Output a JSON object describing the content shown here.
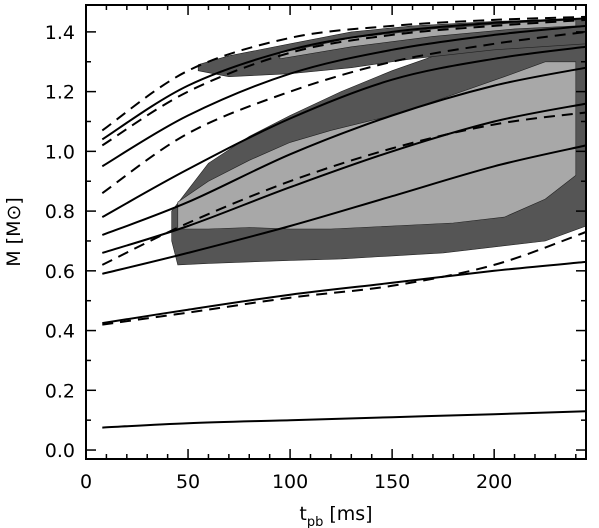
{
  "chart_data": {
    "type": "line",
    "xlabel": "t",
    "xlabel_sub": "pb",
    "xlabel_unit": "[ms]",
    "ylabel": "M [M⊙]",
    "xlim": [
      0,
      245
    ],
    "ylim": [
      -0.03,
      1.49
    ],
    "xticks": [
      0,
      50,
      100,
      150,
      200
    ],
    "yticks": [
      0.0,
      0.2,
      0.4,
      0.6,
      0.8,
      1.0,
      1.2,
      1.4
    ],
    "grid": false,
    "legend": "none",
    "colors": {
      "dark_region": "#555555",
      "light_region": "#a8a8a8",
      "line": "#000000"
    },
    "regions": [
      {
        "shade": "dark",
        "upper": [
          [
            42,
            0.8
          ],
          [
            60,
            0.96
          ],
          [
            80,
            1.05
          ],
          [
            100,
            1.12
          ],
          [
            125,
            1.2
          ],
          [
            150,
            1.27
          ],
          [
            175,
            1.33
          ],
          [
            200,
            1.37
          ],
          [
            225,
            1.4
          ],
          [
            245,
            1.42
          ]
        ],
        "lower": [
          [
            245,
            0.75
          ],
          [
            225,
            0.7
          ],
          [
            200,
            0.68
          ],
          [
            175,
            0.66
          ],
          [
            150,
            0.65
          ],
          [
            125,
            0.64
          ],
          [
            100,
            0.635
          ],
          [
            80,
            0.63
          ],
          [
            60,
            0.625
          ],
          [
            45,
            0.62
          ],
          [
            42,
            0.7
          ]
        ]
      },
      {
        "shade": "light",
        "upper": [
          [
            45,
            0.83
          ],
          [
            60,
            0.9
          ],
          [
            80,
            0.97
          ],
          [
            100,
            1.03
          ],
          [
            120,
            1.07
          ],
          [
            150,
            1.12
          ],
          [
            180,
            1.19
          ],
          [
            205,
            1.25
          ],
          [
            225,
            1.3
          ],
          [
            240,
            1.3
          ]
        ],
        "lower": [
          [
            240,
            0.92
          ],
          [
            225,
            0.84
          ],
          [
            205,
            0.78
          ],
          [
            180,
            0.76
          ],
          [
            150,
            0.75
          ],
          [
            120,
            0.74
          ],
          [
            100,
            0.74
          ],
          [
            80,
            0.745
          ],
          [
            60,
            0.74
          ],
          [
            45,
            0.74
          ]
        ]
      },
      {
        "shade": "dark",
        "upper": [
          [
            55,
            1.29
          ],
          [
            70,
            1.32
          ],
          [
            100,
            1.36
          ],
          [
            130,
            1.4
          ],
          [
            160,
            1.42
          ],
          [
            200,
            1.435
          ],
          [
            245,
            1.445
          ]
        ],
        "lower": [
          [
            245,
            1.36
          ],
          [
            200,
            1.34
          ],
          [
            160,
            1.31
          ],
          [
            130,
            1.28
          ],
          [
            100,
            1.26
          ],
          [
            70,
            1.25
          ],
          [
            55,
            1.27
          ]
        ]
      },
      {
        "shade": "light",
        "upper": [
          [
            95,
            1.33
          ],
          [
            130,
            1.38
          ],
          [
            170,
            1.41
          ],
          [
            210,
            1.43
          ],
          [
            240,
            1.44
          ]
        ],
        "lower": [
          [
            240,
            1.42
          ],
          [
            210,
            1.41
          ],
          [
            170,
            1.385
          ],
          [
            130,
            1.35
          ],
          [
            95,
            1.31
          ]
        ]
      }
    ],
    "series": [
      {
        "style": "solid",
        "x": [
          8,
          50,
          100,
          150,
          200,
          245
        ],
        "y": [
          0.075,
          0.09,
          0.1,
          0.11,
          0.12,
          0.13
        ]
      },
      {
        "style": "solid",
        "x": [
          8,
          50,
          100,
          150,
          200,
          245
        ],
        "y": [
          0.425,
          0.47,
          0.52,
          0.56,
          0.6,
          0.63
        ]
      },
      {
        "style": "dashed",
        "x": [
          8,
          50,
          100,
          150,
          200,
          245
        ],
        "y": [
          0.42,
          0.46,
          0.51,
          0.55,
          0.62,
          0.73
        ]
      },
      {
        "style": "solid",
        "x": [
          8,
          50,
          100,
          150,
          200,
          245
        ],
        "y": [
          0.59,
          0.66,
          0.75,
          0.85,
          0.95,
          1.02
        ]
      },
      {
        "style": "solid",
        "x": [
          8,
          50,
          100,
          150,
          200,
          245
        ],
        "y": [
          0.66,
          0.75,
          0.88,
          1.0,
          1.1,
          1.16
        ]
      },
      {
        "style": "dashed",
        "x": [
          8,
          50,
          100,
          150,
          200,
          245
        ],
        "y": [
          0.62,
          0.76,
          0.9,
          1.01,
          1.09,
          1.13
        ]
      },
      {
        "style": "solid",
        "x": [
          8,
          50,
          100,
          150,
          200,
          245
        ],
        "y": [
          0.72,
          0.83,
          0.99,
          1.12,
          1.22,
          1.28
        ]
      },
      {
        "style": "solid",
        "x": [
          8,
          50,
          100,
          150,
          200,
          245
        ],
        "y": [
          0.78,
          0.94,
          1.11,
          1.24,
          1.31,
          1.35
        ]
      },
      {
        "style": "dashed",
        "x": [
          8,
          50,
          100,
          150,
          200,
          245
        ],
        "y": [
          0.86,
          1.06,
          1.2,
          1.3,
          1.36,
          1.4
        ]
      },
      {
        "style": "solid",
        "x": [
          8,
          50,
          100,
          150,
          200,
          245
        ],
        "y": [
          0.95,
          1.12,
          1.26,
          1.34,
          1.39,
          1.42
        ]
      },
      {
        "style": "dashed",
        "x": [
          8,
          50,
          100,
          150,
          200,
          245
        ],
        "y": [
          1.02,
          1.2,
          1.33,
          1.39,
          1.42,
          1.44
        ]
      },
      {
        "style": "solid",
        "x": [
          8,
          50,
          100,
          150,
          200,
          245
        ],
        "y": [
          1.04,
          1.22,
          1.34,
          1.4,
          1.43,
          1.445
        ]
      },
      {
        "style": "dashed",
        "x": [
          8,
          50,
          100,
          150,
          200,
          245
        ],
        "y": [
          1.07,
          1.27,
          1.38,
          1.42,
          1.44,
          1.45
        ]
      }
    ]
  }
}
